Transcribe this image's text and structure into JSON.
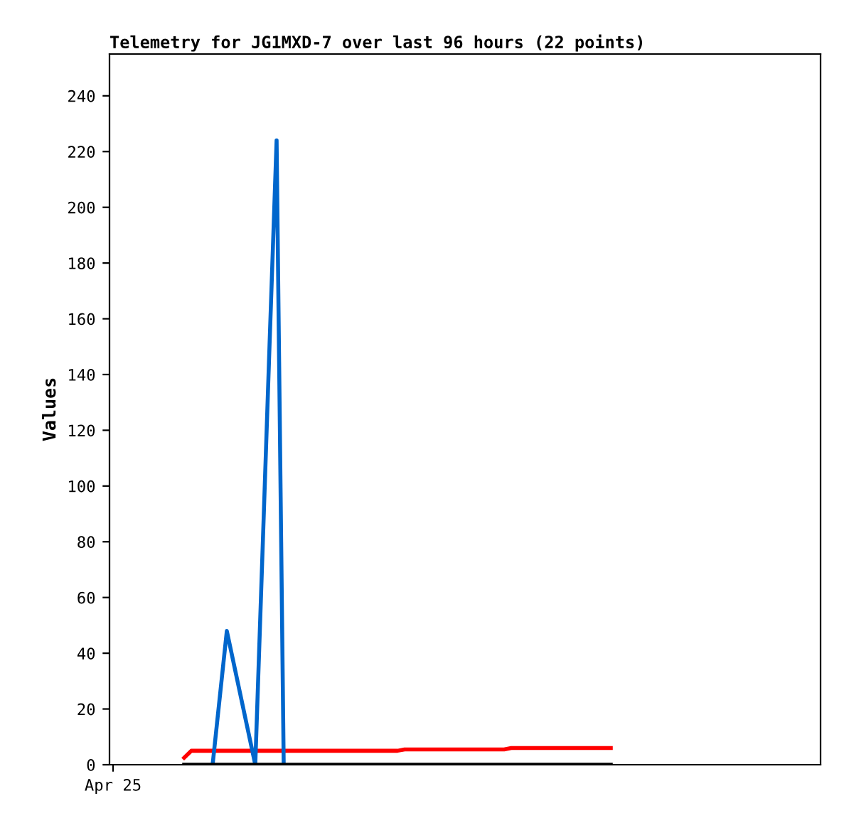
{
  "chart_data": {
    "type": "line",
    "title": "Telemetry for JG1MXD-7 over last 96 hours (22 points)",
    "ylabel": "Values",
    "categories": [
      "Apr 25",
      null,
      null,
      null,
      null,
      null,
      null,
      null,
      null,
      null,
      null,
      null,
      null,
      null,
      null,
      null,
      null,
      null,
      null,
      null,
      null,
      null,
      null,
      null,
      null,
      null,
      null,
      null,
      null,
      null,
      null,
      null,
      null,
      null,
      null,
      null,
      null,
      null,
      null,
      null,
      null,
      null,
      null,
      null,
      null,
      null,
      null,
      null,
      null,
      null,
      null,
      null,
      null,
      null,
      null,
      null,
      null,
      null,
      null,
      null,
      null,
      null,
      null,
      null,
      null,
      null,
      null,
      null,
      null,
      null,
      null,
      null,
      null,
      null,
      null,
      null,
      null,
      null,
      null,
      null,
      null,
      null,
      null,
      null,
      null,
      null,
      null,
      null,
      null,
      null,
      null,
      null,
      null,
      null,
      null,
      null,
      null,
      null,
      null,
      null
    ],
    "ylim": [
      0,
      255
    ],
    "yticks": [
      0,
      20,
      40,
      60,
      80,
      100,
      120,
      140,
      160,
      180,
      200,
      220,
      240
    ],
    "marker": "none",
    "line_style": "solid",
    "series": [
      {
        "color": "#ff0000",
        "values": [
          null,
          null,
          null,
          null,
          null,
          null,
          null,
          null,
          null,
          null,
          2.5,
          5,
          5,
          5,
          5,
          5,
          5,
          5,
          5,
          5,
          5,
          5,
          5,
          5,
          5,
          5,
          5,
          5,
          5,
          5,
          5,
          5,
          5,
          5,
          5,
          5,
          5,
          5,
          5,
          5,
          5,
          5.5,
          5.5,
          5.5,
          5.5,
          5.5,
          5.5,
          5.5,
          5.5,
          5.5,
          5.5,
          5.5,
          5.5,
          5.5,
          5.5,
          5.5,
          6,
          6,
          6,
          6,
          6,
          6,
          6,
          6,
          6,
          6,
          6,
          6,
          6,
          6,
          6,
          null,
          null,
          null,
          null,
          null,
          null,
          null,
          null,
          null,
          null,
          null,
          null,
          null,
          null,
          null,
          null,
          null,
          null,
          null,
          null,
          null,
          null,
          null,
          null,
          null,
          null,
          null,
          null,
          null
        ]
      },
      {
        "color": "#0066cc",
        "values": [
          null,
          null,
          null,
          null,
          null,
          null,
          null,
          null,
          null,
          null,
          null,
          null,
          null,
          null,
          0,
          24,
          48,
          36,
          24,
          12,
          0,
          75,
          150,
          224,
          0,
          null,
          null,
          null,
          null,
          null,
          null,
          null,
          null,
          null,
          null,
          null,
          null,
          null,
          null,
          null,
          null,
          null,
          null,
          null,
          null,
          null,
          null,
          null,
          null,
          null,
          null,
          null,
          null,
          null,
          null,
          null,
          null,
          null,
          null,
          null,
          null,
          null,
          null,
          null,
          null,
          null,
          null,
          null,
          null,
          null,
          null,
          null,
          null,
          null,
          null,
          null,
          null,
          null,
          null,
          null,
          null,
          null,
          null,
          null,
          null,
          null,
          null,
          null,
          null,
          null,
          null,
          null,
          null,
          null,
          null,
          null,
          null,
          null,
          null,
          null
        ]
      },
      {
        "color": "#000000",
        "values": [
          null,
          null,
          null,
          null,
          null,
          null,
          null,
          null,
          null,
          null,
          0,
          0,
          0,
          0,
          0,
          0,
          0,
          0,
          0,
          0,
          0,
          0,
          0,
          0,
          0,
          0,
          0,
          0,
          0,
          0,
          0,
          0,
          0,
          0,
          0,
          0,
          0,
          0,
          0,
          0,
          0,
          0,
          0,
          0,
          0,
          0,
          0,
          0,
          0,
          0,
          0,
          0,
          0,
          0,
          0,
          0,
          0,
          0,
          0,
          0,
          0,
          0,
          0,
          0,
          0,
          0,
          0,
          0,
          0,
          0,
          0,
          null,
          null,
          null,
          null,
          null,
          null,
          null,
          null,
          null,
          null,
          null,
          null,
          null,
          null,
          null,
          null,
          null,
          null,
          null,
          null,
          null,
          null,
          null,
          null,
          null,
          null,
          null,
          null,
          null
        ]
      }
    ]
  }
}
